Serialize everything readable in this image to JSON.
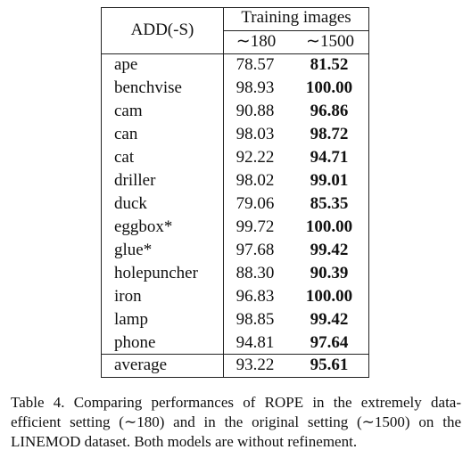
{
  "table": {
    "corner": "ADD(-S)",
    "group": "Training images",
    "columns": [
      "∼180",
      "∼1500"
    ],
    "rows": [
      [
        "ape",
        "78.57",
        "81.52"
      ],
      [
        "benchvise",
        "98.93",
        "100.00"
      ],
      [
        "cam",
        "90.88",
        "96.86"
      ],
      [
        "can",
        "98.03",
        "98.72"
      ],
      [
        "cat",
        "92.22",
        "94.71"
      ],
      [
        "driller",
        "98.02",
        "99.01"
      ],
      [
        "duck",
        "79.06",
        "85.35"
      ],
      [
        "eggbox*",
        "99.72",
        "100.00"
      ],
      [
        "glue*",
        "97.68",
        "99.42"
      ],
      [
        "holepuncher",
        "88.30",
        "90.39"
      ],
      [
        "iron",
        "96.83",
        "100.00"
      ],
      [
        "lamp",
        "98.85",
        "99.42"
      ],
      [
        "phone",
        "94.81",
        "97.64"
      ]
    ],
    "footer": [
      "average",
      "93.22",
      "95.61"
    ]
  },
  "caption": [
    "Table 4. Comparing performances of ROPE in the extremely data-",
    "efficient setting (∼180) and in the original setting (∼1500) on the",
    "LINEMOD dataset. Both models are without refinement."
  ]
}
